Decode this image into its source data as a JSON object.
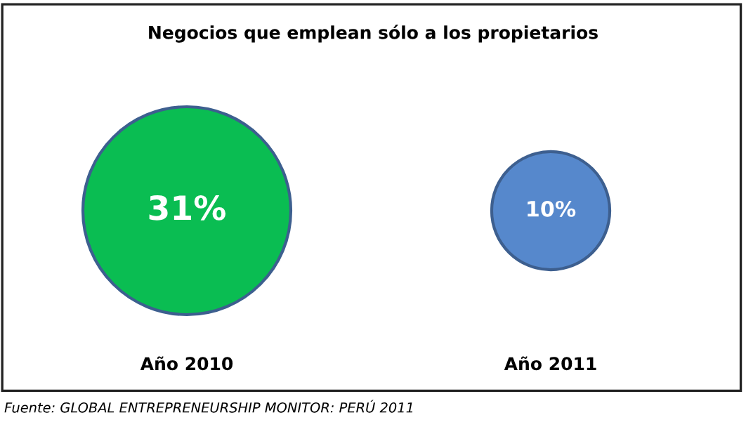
{
  "chart_data": {
    "type": "other",
    "title": "Negocios que emplean sólo a los propietarios",
    "categories": [
      "Año 2010",
      "Año 2011"
    ],
    "values": [
      31,
      10
    ],
    "value_labels": [
      "31%",
      "10%"
    ],
    "colors": [
      "#0abd52",
      "#5688cc"
    ],
    "annotations": [
      "Fuente: GLOBAL ENTREPRENEURSHIP MONITOR: PERÚ 2011"
    ]
  }
}
